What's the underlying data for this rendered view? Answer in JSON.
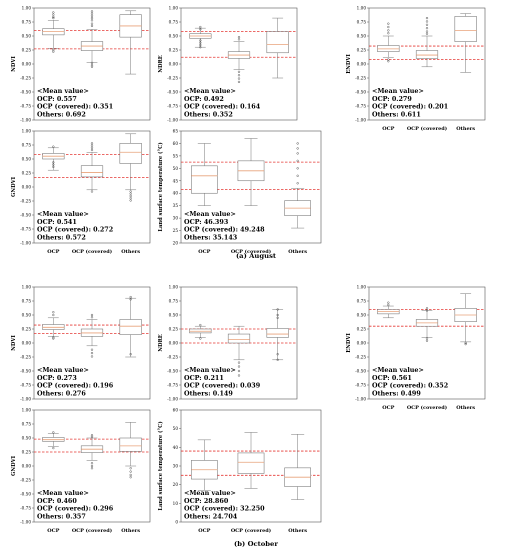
{
  "section_captions": [
    "(a) August",
    "(b) October"
  ],
  "chart_data": [
    {
      "type": "box",
      "ylabel": "NDVI",
      "ylim": [
        -1.0,
        1.0
      ],
      "yticks": [
        "1.00",
        "0.75",
        "0.50",
        "0.25",
        "0.00",
        "-0.25",
        "-0.50",
        "-0.75",
        "-1.00"
      ],
      "categories": [
        "",
        "",
        ""
      ],
      "boxes": [
        {
          "whislo": 0.28,
          "q1": 0.52,
          "med": 0.58,
          "q3": 0.63,
          "whishi": 0.78,
          "outliers": [
            0.92,
            0.88,
            0.84,
            0.82,
            0.25,
            0.22
          ]
        },
        {
          "whislo": 0.03,
          "q1": 0.24,
          "med": 0.32,
          "q3": 0.4,
          "whishi": 0.62,
          "outliers": [
            0.94,
            0.9,
            0.86,
            0.82,
            0.78,
            0.72,
            0.68,
            0.02,
            -0.02,
            -0.05
          ]
        },
        {
          "whislo": -0.18,
          "q1": 0.48,
          "med": 0.68,
          "q3": 0.88,
          "whishi": 0.95,
          "outliers": []
        }
      ],
      "ref_lines": [
        0.6,
        0.27
      ],
      "annotation": [
        "<Mean value>",
        "OCP: 0.557",
        "OCP (covered): 0.351",
        "Others: 0.692"
      ]
    },
    {
      "type": "box",
      "ylabel": "NDRE",
      "ylim": [
        -1.0,
        1.0
      ],
      "yticks": [
        "1.00",
        "0.75",
        "0.50",
        "0.25",
        "0.00",
        "-0.25",
        "-0.50",
        "-0.75",
        "-1.00"
      ],
      "categories": [
        "",
        "",
        ""
      ],
      "boxes": [
        {
          "whislo": 0.3,
          "q1": 0.46,
          "med": 0.5,
          "q3": 0.54,
          "whishi": 0.64,
          "outliers": [
            0.66,
            0.62,
            0.42,
            0.38,
            0.34,
            0.3
          ]
        },
        {
          "whislo": -0.1,
          "q1": 0.1,
          "med": 0.16,
          "q3": 0.22,
          "whishi": 0.4,
          "outliers": [
            0.44,
            0.48,
            -0.14,
            -0.2,
            -0.26,
            -0.32
          ]
        },
        {
          "whislo": -0.25,
          "q1": 0.2,
          "med": 0.35,
          "q3": 0.58,
          "whishi": 0.82,
          "outliers": []
        }
      ],
      "ref_lines": [
        0.58,
        0.12
      ],
      "annotation": [
        "<Mean value>",
        "OCP: 0.492",
        "OCP (covered): 0.164",
        "Others: 0.352"
      ]
    },
    {
      "type": "box",
      "ylabel": "ENDVI",
      "ylim": [
        -1.0,
        1.0
      ],
      "yticks": [
        "1.00",
        "0.75",
        "0.50",
        "0.25",
        "0.00",
        "-0.25",
        "-0.50",
        "-0.75",
        "-1.00"
      ],
      "categories": [
        "OCP",
        "OCP (covered)",
        "Others"
      ],
      "boxes": [
        {
          "whislo": 0.12,
          "q1": 0.22,
          "med": 0.27,
          "q3": 0.33,
          "whishi": 0.5,
          "outliers": [
            0.72,
            0.66,
            0.6,
            0.55,
            0.08,
            0.05
          ]
        },
        {
          "whislo": -0.05,
          "q1": 0.1,
          "med": 0.16,
          "q3": 0.24,
          "whishi": 0.5,
          "outliers": [
            0.82,
            0.76,
            0.7,
            0.64,
            0.58,
            0.54
          ]
        },
        {
          "whislo": -0.15,
          "q1": 0.4,
          "med": 0.6,
          "q3": 0.85,
          "whishi": 0.9,
          "outliers": []
        }
      ],
      "ref_lines": [
        0.32,
        0.08
      ],
      "annotation": [
        "<Mean value>",
        "OCP: 0.279",
        "OCP (covered): 0.201",
        "Others: 0.611"
      ]
    },
    {
      "type": "box",
      "ylabel": "GNDVI",
      "ylim": [
        -1.0,
        1.0
      ],
      "yticks": [
        "1.00",
        "0.75",
        "0.50",
        "0.25",
        "0.00",
        "-0.25",
        "-0.50",
        "-0.75",
        "-1.00"
      ],
      "categories": [
        "OCP",
        "OCP (covered)",
        "Others"
      ],
      "boxes": [
        {
          "whislo": 0.3,
          "q1": 0.5,
          "med": 0.55,
          "q3": 0.6,
          "whishi": 0.7,
          "outliers": [
            0.72,
            0.44,
            0.4,
            0.36
          ]
        },
        {
          "whislo": -0.05,
          "q1": 0.18,
          "med": 0.26,
          "q3": 0.38,
          "whishi": 0.62,
          "outliers": [
            0.78,
            0.74,
            0.7,
            0.66,
            -0.08
          ]
        },
        {
          "whislo": -0.05,
          "q1": 0.42,
          "med": 0.62,
          "q3": 0.78,
          "whishi": 0.95,
          "outliers": [
            -0.08,
            -0.12,
            -0.16,
            -0.2,
            -0.24
          ]
        }
      ],
      "ref_lines": [
        0.58,
        0.17
      ],
      "annotation": [
        "<Mean value>",
        "OCP: 0.541",
        "OCP (covered): 0.272",
        "Others: 0.572"
      ]
    },
    {
      "type": "box",
      "ylabel": "Land surface temperature (°C)",
      "ylim": [
        20,
        65
      ],
      "yticks": [
        "65",
        "60",
        "55",
        "50",
        "45",
        "40",
        "35",
        "30",
        "25",
        "20"
      ],
      "categories": [
        "OCP",
        "OCP (covered)",
        "Others"
      ],
      "boxes": [
        {
          "whislo": 35,
          "q1": 40,
          "med": 47,
          "q3": 51,
          "whishi": 60,
          "outliers": []
        },
        {
          "whislo": 35,
          "q1": 45,
          "med": 49,
          "q3": 53,
          "whishi": 62,
          "outliers": []
        },
        {
          "whislo": 26,
          "q1": 31,
          "med": 34,
          "q3": 37,
          "whishi": 42,
          "outliers": [
            44,
            47,
            50,
            53,
            56,
            58,
            60
          ]
        }
      ],
      "ref_lines": [
        52.5,
        41.5
      ],
      "annotation": [
        "<Mean value>",
        "OCP: 46.393",
        "OCP (covered): 49.248",
        "Others: 35.143"
      ]
    },
    {
      "type": "box",
      "ylabel": "NDVI",
      "ylim": [
        -1.0,
        1.0
      ],
      "yticks": [
        "1.00",
        "0.75",
        "0.50",
        "0.25",
        "0.00",
        "-0.25",
        "-0.50",
        "-0.75",
        "-1.00"
      ],
      "categories": [
        "",
        "",
        ""
      ],
      "boxes": [
        {
          "whislo": 0.12,
          "q1": 0.24,
          "med": 0.28,
          "q3": 0.33,
          "whishi": 0.45,
          "outliers": [
            0.55,
            0.5,
            0.1,
            0.08
          ]
        },
        {
          "whislo": -0.05,
          "q1": 0.12,
          "med": 0.18,
          "q3": 0.25,
          "whishi": 0.42,
          "outliers": [
            0.5,
            0.46,
            -0.12,
            -0.18,
            -0.24
          ]
        },
        {
          "whislo": -0.25,
          "q1": 0.15,
          "med": 0.3,
          "q3": 0.42,
          "whishi": 0.8,
          "outliers": [
            0.82,
            0.78,
            -0.2
          ]
        }
      ],
      "ref_lines": [
        0.32,
        0.17
      ],
      "annotation": [
        "<Mean value>",
        "OCP: 0.273",
        "OCP (covered): 0.196",
        "Others: 0.276"
      ]
    },
    {
      "type": "box",
      "ylabel": "NDRE",
      "ylim": [
        -1.0,
        1.0
      ],
      "yticks": [
        "1.00",
        "0.75",
        "0.50",
        "0.25",
        "0.00",
        "-0.25",
        "-0.50",
        "-0.75",
        "-1.00"
      ],
      "categories": [
        "",
        "",
        ""
      ],
      "boxes": [
        {
          "whislo": 0.1,
          "q1": 0.18,
          "med": 0.21,
          "q3": 0.25,
          "whishi": 0.3,
          "outliers": [
            0.32,
            0.08
          ]
        },
        {
          "whislo": -0.3,
          "q1": 0.0,
          "med": 0.06,
          "q3": 0.16,
          "whishi": 0.3,
          "outliers": [
            -0.35,
            -0.42,
            -0.5,
            -0.58
          ]
        },
        {
          "whislo": -0.3,
          "q1": 0.1,
          "med": 0.16,
          "q3": 0.26,
          "whishi": 0.6,
          "outliers": [
            0.6,
            0.5,
            0.45,
            -0.2,
            -0.3
          ]
        }
      ],
      "ref_lines": [
        0.25,
        0.0
      ],
      "annotation": [
        "<Mean value>",
        "OCP: 0.211",
        "OCP (covered): 0.039",
        "Others: 0.149"
      ]
    },
    {
      "type": "box",
      "ylabel": "ENDVI",
      "ylim": [
        -1.0,
        1.0
      ],
      "yticks": [
        "1.00",
        "0.75",
        "0.50",
        "0.25",
        "0.00",
        "-0.25",
        "-0.50",
        "-0.75",
        "-1.00"
      ],
      "categories": [
        "OCP",
        "OCP (covered)",
        "Others"
      ],
      "boxes": [
        {
          "whislo": 0.45,
          "q1": 0.52,
          "med": 0.56,
          "q3": 0.6,
          "whishi": 0.66,
          "outliers": [
            0.72,
            0.68
          ]
        },
        {
          "whislo": 0.1,
          "q1": 0.3,
          "med": 0.36,
          "q3": 0.42,
          "whishi": 0.58,
          "outliers": [
            0.62,
            0.58,
            0.08,
            0.04
          ]
        },
        {
          "whislo": 0.02,
          "q1": 0.38,
          "med": 0.5,
          "q3": 0.62,
          "whishi": 0.88,
          "outliers": [
            0.0,
            -0.02
          ]
        }
      ],
      "ref_lines": [
        0.6,
        0.3
      ],
      "annotation": [
        "<Mean value>",
        "OCP: 0.561",
        "OCP (covered): 0.352",
        "Others: 0.499"
      ]
    },
    {
      "type": "box",
      "ylabel": "GNDVI",
      "ylim": [
        -1.0,
        1.0
      ],
      "yticks": [
        "1.00",
        "0.75",
        "0.50",
        "0.25",
        "0.00",
        "-0.25",
        "-0.50",
        "-0.75",
        "-1.00"
      ],
      "categories": [
        "OCP",
        "OCP (covered)",
        "Others"
      ],
      "boxes": [
        {
          "whislo": 0.35,
          "q1": 0.44,
          "med": 0.47,
          "q3": 0.51,
          "whishi": 0.58,
          "outliers": [
            0.6,
            0.32
          ]
        },
        {
          "whislo": 0.1,
          "q1": 0.24,
          "med": 0.3,
          "q3": 0.36,
          "whishi": 0.5,
          "outliers": [
            0.55,
            0.52,
            0.05,
            0.0,
            -0.04
          ]
        },
        {
          "whislo": 0.0,
          "q1": 0.26,
          "med": 0.36,
          "q3": 0.5,
          "whishi": 0.78,
          "outliers": [
            -0.04,
            -0.1,
            -0.16,
            -0.2
          ]
        }
      ],
      "ref_lines": [
        0.48,
        0.25
      ],
      "annotation": [
        "<Mean value>",
        "OCP: 0.460",
        "OCP (covered): 0.296",
        "Others: 0.357"
      ]
    },
    {
      "type": "box",
      "ylabel": "Land surface temperature (°C)",
      "ylim": [
        0,
        60
      ],
      "yticks": [
        "60",
        "50",
        "40",
        "30",
        "20",
        "10",
        "0"
      ],
      "categories": [
        "OCP",
        "OCP (covered)",
        "Others"
      ],
      "boxes": [
        {
          "whislo": 17,
          "q1": 23,
          "med": 28,
          "q3": 33,
          "whishi": 44,
          "outliers": []
        },
        {
          "whislo": 18,
          "q1": 26,
          "med": 32,
          "q3": 37,
          "whishi": 48,
          "outliers": []
        },
        {
          "whislo": 12,
          "q1": 19,
          "med": 24,
          "q3": 29,
          "whishi": 47,
          "outliers": []
        }
      ],
      "ref_lines": [
        38,
        25
      ],
      "annotation": [
        "<Mean value>",
        "OCP: 28.860",
        "OCP (covered): 32.250",
        "Others: 24.704"
      ]
    }
  ]
}
